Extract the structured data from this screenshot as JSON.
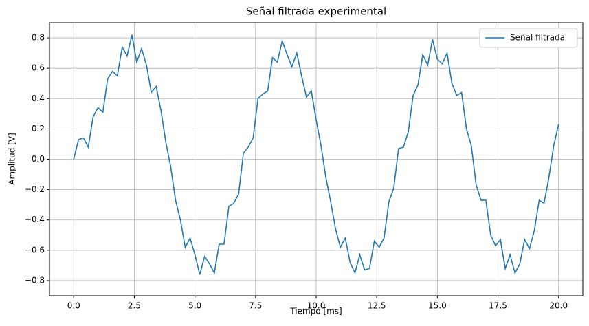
{
  "chart_data": {
    "type": "line",
    "title": "Señal filtrada experimental",
    "x_label": "Tiempo [ms]",
    "y_label": "Amplitud [V]",
    "x": [
      0,
      0.2,
      0.4,
      0.6,
      0.8,
      1.0,
      1.2,
      1.4,
      1.6,
      1.8,
      2.0,
      2.2,
      2.4,
      2.6,
      2.8,
      3.0,
      3.2,
      3.4,
      3.6,
      3.8,
      4.0,
      4.2,
      4.4,
      4.6,
      4.8,
      5.0,
      5.2,
      5.4,
      5.6,
      5.8,
      6.0,
      6.2,
      6.4,
      6.6,
      6.8,
      7.0,
      7.2,
      7.4,
      7.6,
      7.8,
      8.0,
      8.2,
      8.4,
      8.6,
      8.8,
      9.0,
      9.2,
      9.4,
      9.6,
      9.8,
      10.0,
      10.2,
      10.4,
      10.6,
      10.8,
      11.0,
      11.2,
      11.4,
      11.6,
      11.8,
      12.0,
      12.2,
      12.4,
      12.6,
      12.8,
      13.0,
      13.2,
      13.4,
      13.6,
      13.8,
      14.0,
      14.2,
      14.4,
      14.6,
      14.8,
      15.0,
      15.2,
      15.4,
      15.6,
      15.8,
      16.0,
      16.2,
      16.4,
      16.6,
      16.8,
      17.0,
      17.2,
      17.4,
      17.6,
      17.8,
      18.0,
      18.2,
      18.4,
      18.6,
      18.8,
      19.0,
      19.2,
      19.4,
      19.6,
      19.8,
      20.0
    ],
    "series": [
      {
        "name": "Señal filtrada",
        "color": "#1f77b4",
        "values": [
          0,
          0.13,
          0.14,
          0.08,
          0.28,
          0.34,
          0.31,
          0.53,
          0.58,
          0.55,
          0.74,
          0.68,
          0.82,
          0.64,
          0.73,
          0.62,
          0.44,
          0.48,
          0.32,
          0.11,
          -0.05,
          -0.27,
          -0.4,
          -0.58,
          -0.52,
          -0.63,
          -0.76,
          -0.64,
          -0.69,
          -0.75,
          -0.56,
          -0.56,
          -0.31,
          -0.29,
          -0.23,
          0.04,
          0.08,
          0.14,
          0.4,
          0.43,
          0.45,
          0.67,
          0.64,
          0.78,
          0.69,
          0.61,
          0.7,
          0.55,
          0.41,
          0.45,
          0.26,
          0.09,
          -0.12,
          -0.28,
          -0.46,
          -0.58,
          -0.52,
          -0.68,
          -0.75,
          -0.63,
          -0.73,
          -0.72,
          -0.54,
          -0.58,
          -0.52,
          -0.28,
          -0.19,
          0.07,
          0.08,
          0.18,
          0.42,
          0.49,
          0.69,
          0.62,
          0.79,
          0.66,
          0.63,
          0.7,
          0.5,
          0.42,
          0.44,
          0.2,
          0.09,
          -0.17,
          -0.27,
          -0.27,
          -0.5,
          -0.57,
          -0.53,
          -0.72,
          -0.63,
          -0.75,
          -0.69,
          -0.53,
          -0.59,
          -0.47,
          -0.27,
          -0.29,
          -0.12,
          0.09,
          0.23
        ]
      }
    ],
    "xlim": [
      -1,
      21
    ],
    "ylim": [
      -0.9,
      0.9
    ],
    "xticks": [
      {
        "value": 0,
        "label": "0.0"
      },
      2.5,
      {
        "value": 5,
        "label": "5.0"
      },
      7.5,
      {
        "value": 10,
        "label": "10.0"
      },
      12.5,
      {
        "value": 15,
        "label": "15.0"
      },
      17.5,
      {
        "value": 20,
        "label": "20.0"
      }
    ],
    "yticks": [
      {
        "value": -0.8,
        "label": "−0.8"
      },
      {
        "value": -0.6,
        "label": "−0.6"
      },
      {
        "value": -0.4,
        "label": "−0.4"
      },
      {
        "value": -0.2,
        "label": "−0.2"
      },
      {
        "value": 0,
        "label": "0.0"
      },
      0.2,
      0.4,
      0.6,
      0.8
    ],
    "grid": true,
    "legend": "upper-right"
  }
}
